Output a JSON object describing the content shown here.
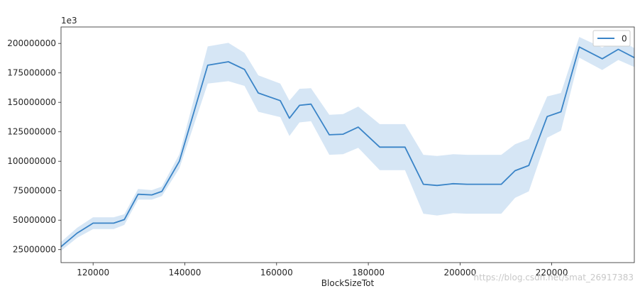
{
  "chart_data": {
    "type": "line",
    "title": "",
    "xlabel": "BlockSizeTot",
    "ylabel": "",
    "offset_text": "1e3",
    "xlim": [
      113000,
      238000
    ],
    "ylim": [
      14000000,
      214000000
    ],
    "xticks": [
      120000,
      140000,
      160000,
      180000,
      200000,
      220000
    ],
    "xtick_labels": [
      "120000",
      "140000",
      "160000",
      "180000",
      "200000",
      "220000"
    ],
    "yticks": [
      25000000,
      50000000,
      75000000,
      100000000,
      125000000,
      150000000,
      175000000,
      200000000
    ],
    "ytick_labels": [
      "25000000",
      "50000000",
      "75000000",
      "100000000",
      "125000000",
      "150000000",
      "175000000",
      "200000000"
    ],
    "grid": false,
    "legend": {
      "position": "top-right",
      "entries": [
        "0"
      ]
    },
    "series": [
      {
        "name": "0",
        "color": "#3a84c7",
        "band_color": "#c8ddf2",
        "x": [
          113000,
          116500,
          120000,
          123000,
          124500,
          126800,
          129800,
          132800,
          135000,
          138800,
          145000,
          149500,
          153000,
          156000,
          160800,
          162800,
          165000,
          167500,
          171500,
          174500,
          177800,
          182500,
          188000,
          192000,
          195000,
          198500,
          201500,
          206000,
          209000,
          212000,
          215000,
          219000,
          222000,
          226000,
          231000,
          234500,
          238000
        ],
        "y": [
          27500000,
          39000000,
          47500000,
          47500000,
          47500000,
          50500000,
          72000000,
          71500000,
          74500000,
          100000000,
          181500000,
          184500000,
          178000000,
          158000000,
          151500000,
          136500000,
          147500000,
          148500000,
          122500000,
          123000000,
          129000000,
          112000000,
          112000000,
          80500000,
          79500000,
          81000000,
          80500000,
          80500000,
          80500000,
          92000000,
          96500000,
          138000000,
          142000000,
          197000000,
          187000000,
          195000000,
          188000000
        ],
        "lower": [
          24000000,
          35000000,
          42500000,
          42500000,
          42500000,
          46000000,
          67500000,
          67500000,
          70500000,
          94000000,
          166000000,
          168000000,
          164000000,
          142000000,
          137500000,
          121500000,
          133000000,
          134000000,
          105500000,
          106000000,
          111500000,
          92500000,
          92500000,
          55500000,
          54000000,
          56000000,
          55500000,
          55500000,
          55500000,
          69000000,
          74500000,
          120000000,
          126000000,
          188000000,
          177500000,
          186000000,
          180000000
        ],
        "upper": [
          31500000,
          43500000,
          52500000,
          52500000,
          52500000,
          55000000,
          76500000,
          75500000,
          78500000,
          106000000,
          197500000,
          200500000,
          192000000,
          173000000,
          166000000,
          151500000,
          161500000,
          162000000,
          139500000,
          140000000,
          146500000,
          131500000,
          131500000,
          105500000,
          104500000,
          106000000,
          105500000,
          105500000,
          105500000,
          114500000,
          119000000,
          155000000,
          158000000,
          205500000,
          196500000,
          204000000,
          196000000
        ]
      }
    ]
  },
  "watermark_text": "https://blog.csdn.net/smat_26917383"
}
